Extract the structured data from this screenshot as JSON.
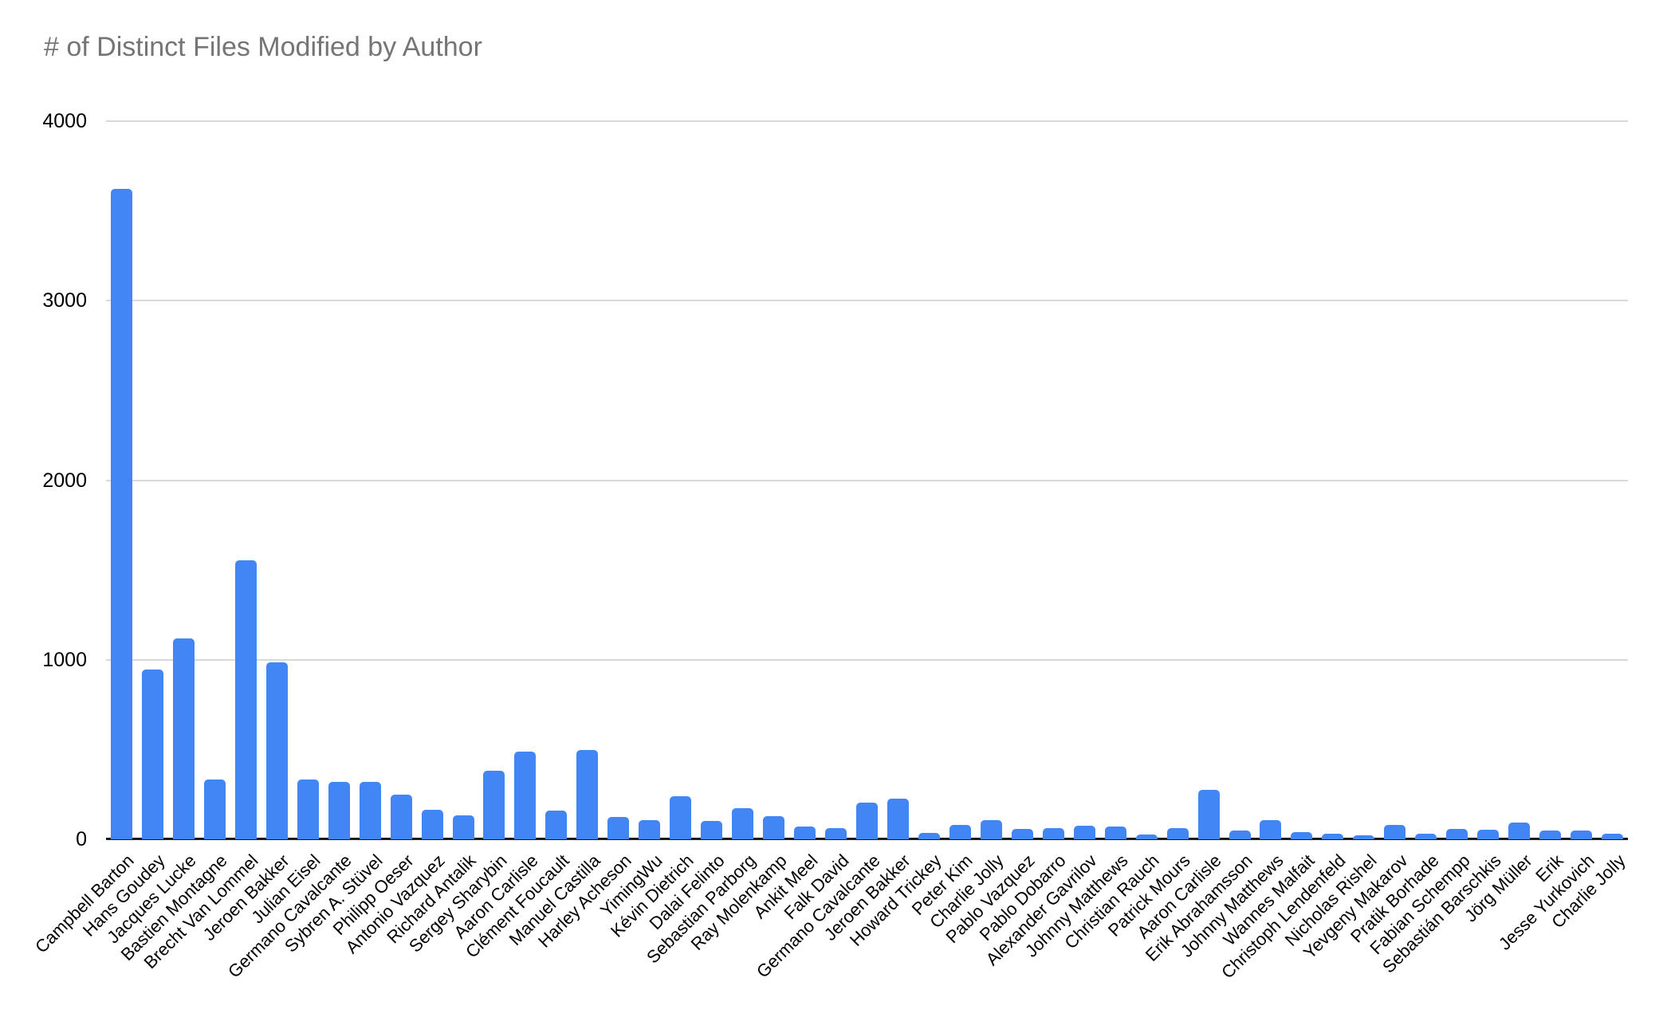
{
  "title": "# of Distinct Files Modified by Author",
  "colors": {
    "bar": "#4285F4",
    "title_text": "#757575",
    "gridline": "#d9d9d9",
    "axis_line": "#1a1a1a",
    "tick_text": "#000000"
  },
  "chart_data": {
    "type": "bar",
    "title": "# of Distinct Files Modified by Author",
    "xlabel": "",
    "ylabel": "",
    "ylim": [
      0,
      4000
    ],
    "yticks": [
      0,
      1000,
      2000,
      3000,
      4000
    ],
    "grid": true,
    "legend": "none",
    "bar_color": "#4285F4",
    "categories": [
      "Campbell Barton",
      "Hans Goudey",
      "Jacques Lucke",
      "Bastien Montagne",
      "Brecht Van Lommel",
      "Jeroen Bakker",
      "Julian Eisel",
      "Germano Cavalcante",
      "Sybren A. Stüvel",
      "Philipp Oeser",
      "Antonio Vazquez",
      "Richard Antalik",
      "Sergey Sharybin",
      "Aaron Carlisle",
      "Clément Foucault",
      "Manuel Castilla",
      "Harley Acheson",
      "YimingWu",
      "Kévin Dietrich",
      "Dalai Felinto",
      "Sebastian Parborg",
      "Ray Molenkamp",
      "Ankit Meel",
      "Falk David",
      "Germano Cavalcante",
      "Jeroen Bakker",
      "Howard Trickey",
      "Peter Kim",
      "Charlie Jolly",
      "Pablo Vazquez",
      "Pablo Dobarro",
      "Alexander Gavrilov",
      "Johnny Matthews",
      "Christian Rauch",
      "Patrick Mours",
      "Aaron Carlisle",
      "Erik Abrahamsson",
      "Johnny Matthews",
      "Wannes Malfait",
      "Christoph Lendenfeld",
      "Nicholas Rishel",
      "Yevgeny Makarov",
      "Pratik Borhade",
      "Fabian Schempp",
      "Sebastián Barschkis",
      "Jörg Müller",
      "Erik",
      "Jesse Yurkovich",
      "Charlie Jolly"
    ],
    "values": [
      3622,
      947,
      1119,
      332,
      1552,
      986,
      332,
      320,
      319,
      250,
      164,
      134,
      380,
      488,
      160,
      499,
      126,
      108,
      241,
      101,
      175,
      127,
      71,
      64,
      202,
      226,
      37,
      81,
      106,
      59,
      64,
      74,
      73,
      27,
      61,
      275,
      48,
      107,
      39,
      31,
      22,
      82,
      30,
      56,
      52,
      93,
      50,
      47,
      33
    ]
  }
}
